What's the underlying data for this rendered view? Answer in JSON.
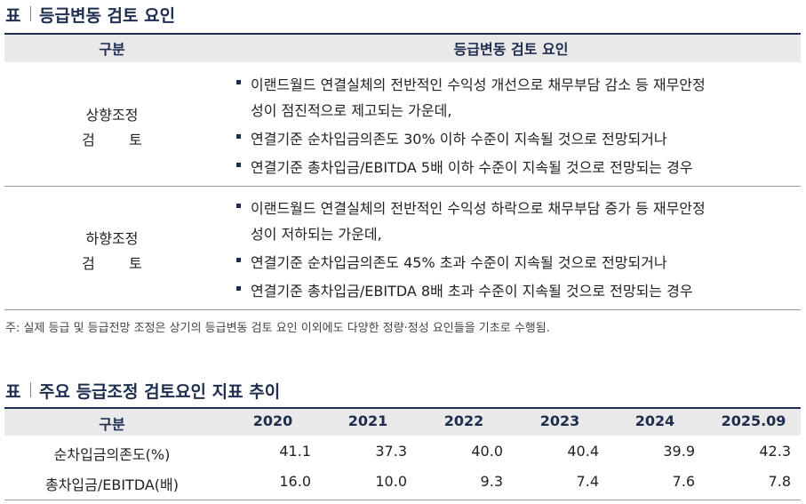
{
  "table1": {
    "label": "표",
    "title": "등급변동 검토 요인",
    "header": [
      "구분",
      "등급변동 검토 요인"
    ],
    "rows": [
      {
        "category": [
          "상향조정",
          "검토"
        ],
        "items": [
          [
            "이랜드월드 연결실체의 전반적인 수익성 개선으로 채무부담 감소 등 재무안정",
            "성이 점진적으로 제고되는 가운데,"
          ],
          [
            "연결기준 순차입금의존도 30% 이하 수준이 지속될 것으로 전망되거나"
          ],
          [
            "연결기준 총차입금/EBITDA 5배 이하 수준이 지속될 것으로 전망되는 경우"
          ]
        ]
      },
      {
        "category": [
          "하향조정",
          "검토"
        ],
        "items": [
          [
            "이랜드월드 연결실체의 전반적인 수익성 하락으로 채무부담 증가 등 재무안정",
            "성이 저하되는 가운데,"
          ],
          [
            "연결기준 순차입금의존도 45% 초과 수준이 지속될 것으로 전망되거나"
          ],
          [
            "연결기준 총차입금/EBITDA 8배 초과 수준이 지속될 것으로 전망되는 경우"
          ]
        ]
      }
    ],
    "note": "주: 실제 등급 및 등급전망 조정은 상기의 등급변동 검토 요인 이외에도 다양한 정량·정성 요인들을 기초로 수행됨."
  },
  "table2": {
    "label": "표",
    "title": "주요 등급조정 검토요인 지표 추이",
    "header": [
      "구분",
      "2020",
      "2021",
      "2022",
      "2023",
      "2024",
      "2025.09"
    ],
    "rows": [
      [
        "순차입금의존도(%)",
        "41.1",
        "37.3",
        "40.0",
        "40.4",
        "39.9",
        "42.3"
      ],
      [
        "총차입금/EBITDA(배)",
        "16.0",
        "10.0",
        "9.3",
        "7.4",
        "7.6",
        "7.8"
      ]
    ]
  }
}
